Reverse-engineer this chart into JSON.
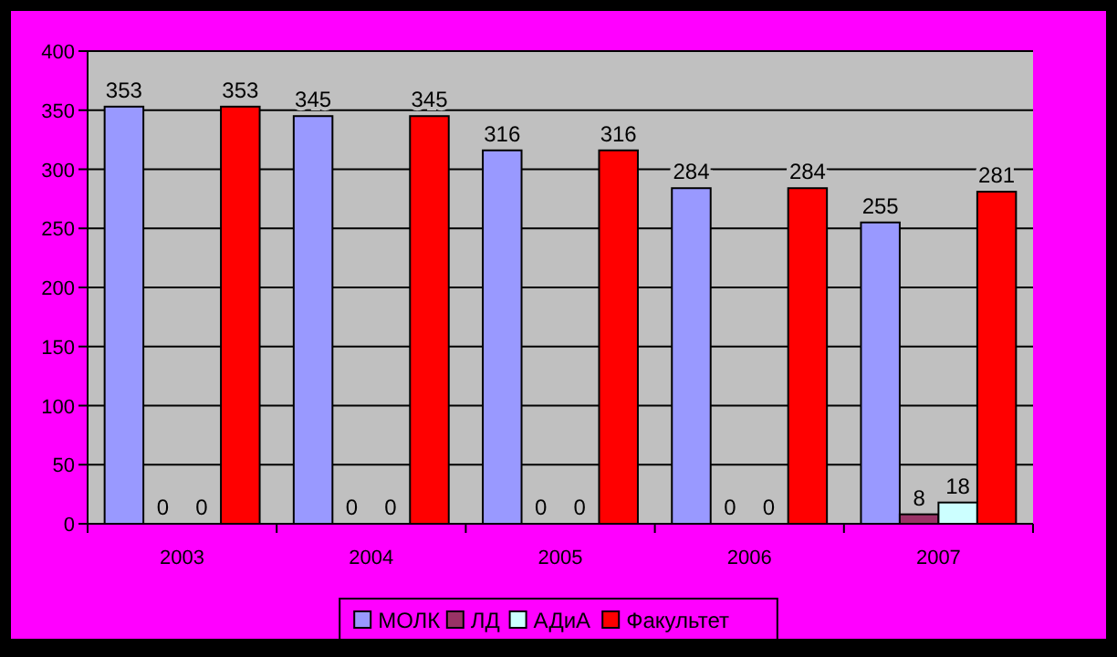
{
  "chart_data": {
    "type": "bar",
    "categories": [
      "2003",
      "2004",
      "2005",
      "2006",
      "2007"
    ],
    "series": [
      {
        "name": "МОЛК",
        "color": "#9999ff",
        "values": [
          353,
          345,
          316,
          284,
          255
        ]
      },
      {
        "name": "ЛД",
        "color": "#993366",
        "values": [
          0,
          0,
          0,
          0,
          8
        ]
      },
      {
        "name": "АДиА",
        "color": "#ccffff",
        "values": [
          0,
          0,
          0,
          0,
          18
        ]
      },
      {
        "name": "Факультет",
        "color": "#ff0000",
        "values": [
          353,
          345,
          316,
          284,
          281
        ]
      }
    ],
    "ylim": [
      0,
      400
    ],
    "yticks": [
      0,
      50,
      100,
      150,
      200,
      250,
      300,
      350,
      400
    ],
    "grid": "y",
    "legend": "bottom",
    "data_labels": true
  }
}
